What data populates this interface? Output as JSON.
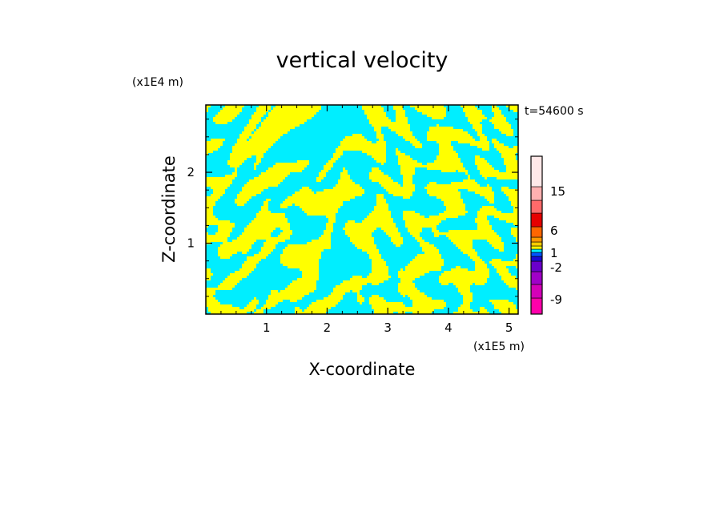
{
  "chart_data": {
    "type": "heatmap",
    "title": "vertical velocity",
    "xlabel": "X-coordinate",
    "ylabel": "Z-coordinate",
    "x_scale_label": "(x1E5 m)",
    "y_scale_label": "(x1E4 m)",
    "time_label": "t=54600 s",
    "xlim": [
      0,
      5.15
    ],
    "ylim": [
      0,
      2.95
    ],
    "x_ticks": [
      "1",
      "2",
      "3",
      "4",
      "5"
    ],
    "y_ticks": [
      "1",
      "2"
    ],
    "dominant_colors": {
      "positive": "#ffff00",
      "negative": "#00eeff"
    },
    "colorbar": {
      "levels_bottom_to_top": [
        {
          "color": "#ff00aa"
        },
        {
          "color": "#d400b8"
        },
        {
          "color": "#a000c8"
        },
        {
          "color": "#6a00cc"
        },
        {
          "color": "#1a0bd4"
        },
        {
          "color": "#0055ff"
        },
        {
          "color": "#00eeff"
        },
        {
          "color": "#ffff00"
        },
        {
          "color": "#ffcc00"
        },
        {
          "color": "#ff9900"
        },
        {
          "color": "#ff6600"
        },
        {
          "color": "#e60000"
        },
        {
          "color": "#ff6a6a"
        },
        {
          "color": "#ffb0b0"
        },
        {
          "color": "#ffe8e8"
        }
      ],
      "labels": [
        "15",
        "6",
        "1",
        "-2",
        "-9"
      ]
    }
  }
}
